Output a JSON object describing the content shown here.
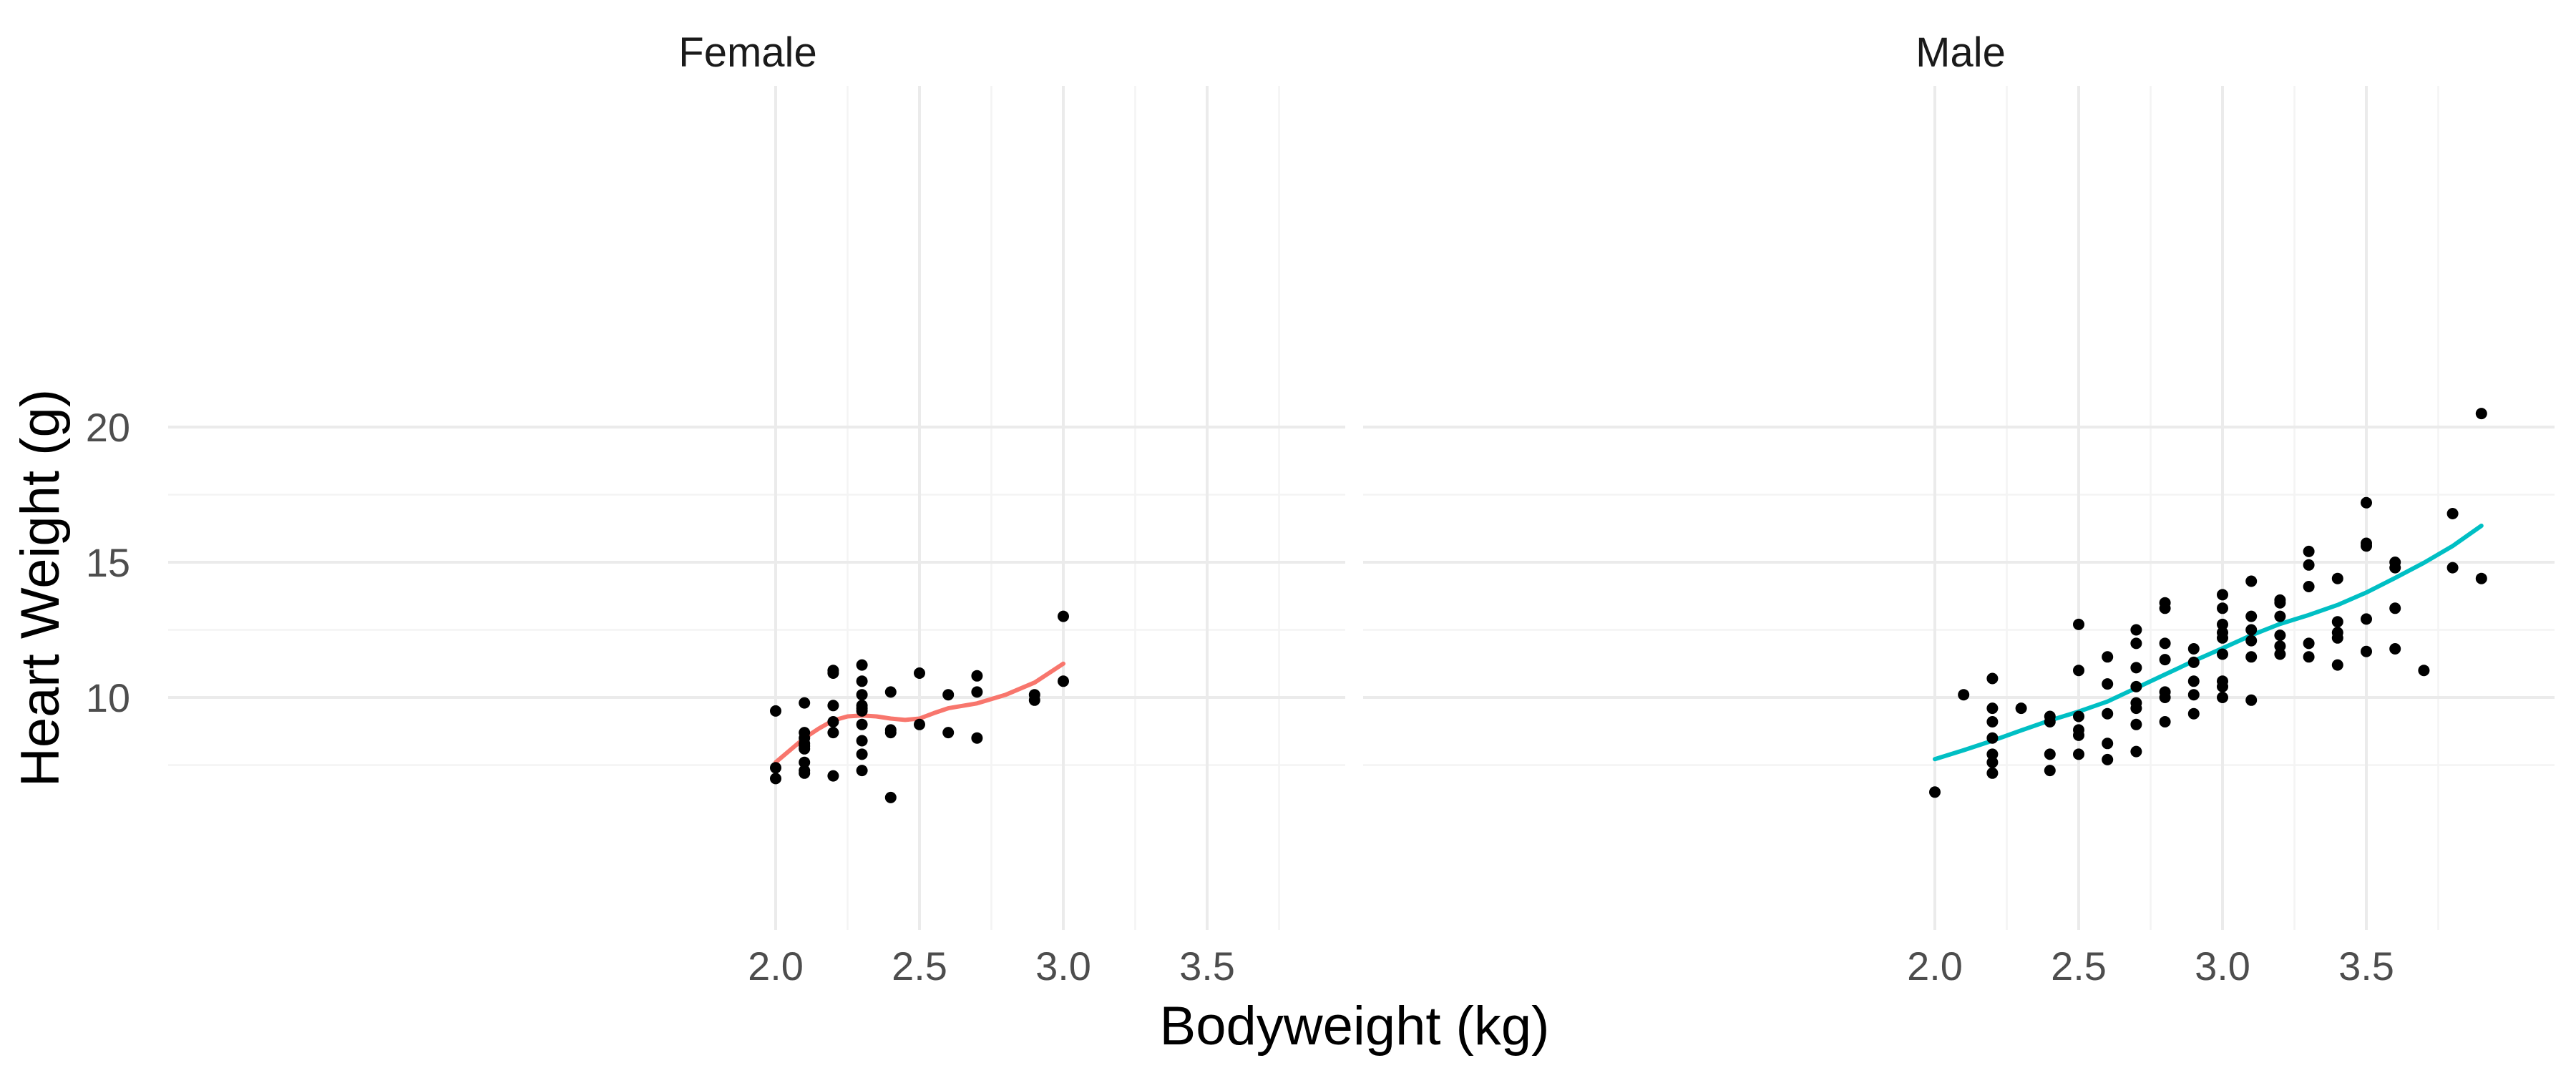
{
  "chart_data": {
    "type": "scatter",
    "xlabel": "Bodyweight (kg)",
    "ylabel": "Heart Weight (g)",
    "xlim": [
      1.9,
      3.95
    ],
    "ylim": [
      6.0,
      21.0
    ],
    "x_ticks": [
      "2.0",
      "2.5",
      "3.0",
      "3.5"
    ],
    "y_ticks": [
      "10",
      "15",
      "20"
    ],
    "grid": true,
    "legend": "none",
    "panels": [
      {
        "label": "Female",
        "line_color": "#F8766D",
        "points": [
          [
            2.0,
            7.0
          ],
          [
            2.0,
            7.4
          ],
          [
            2.0,
            9.5
          ],
          [
            2.1,
            7.2
          ],
          [
            2.1,
            7.3
          ],
          [
            2.1,
            7.6
          ],
          [
            2.1,
            8.1
          ],
          [
            2.1,
            8.2
          ],
          [
            2.1,
            8.3
          ],
          [
            2.1,
            8.5
          ],
          [
            2.1,
            8.7
          ],
          [
            2.1,
            9.8
          ],
          [
            2.2,
            7.1
          ],
          [
            2.2,
            8.7
          ],
          [
            2.2,
            9.1
          ],
          [
            2.2,
            9.7
          ],
          [
            2.2,
            10.9
          ],
          [
            2.2,
            11.0
          ],
          [
            2.3,
            7.3
          ],
          [
            2.3,
            7.9
          ],
          [
            2.3,
            8.4
          ],
          [
            2.3,
            9.0
          ],
          [
            2.3,
            9.5
          ],
          [
            2.3,
            9.6
          ],
          [
            2.3,
            9.7
          ],
          [
            2.3,
            10.1
          ],
          [
            2.3,
            10.6
          ],
          [
            2.3,
            11.2
          ],
          [
            2.4,
            6.3
          ],
          [
            2.4,
            8.7
          ],
          [
            2.4,
            8.8
          ],
          [
            2.4,
            10.2
          ],
          [
            2.5,
            9.0
          ],
          [
            2.5,
            10.9
          ],
          [
            2.6,
            8.7
          ],
          [
            2.6,
            10.1
          ],
          [
            2.7,
            8.5
          ],
          [
            2.7,
            10.2
          ],
          [
            2.7,
            10.8
          ],
          [
            2.9,
            9.9
          ],
          [
            2.9,
            10.1
          ],
          [
            3.0,
            10.6
          ],
          [
            3.0,
            13.0
          ]
        ],
        "smooth": [
          [
            2.0,
            7.6
          ],
          [
            2.05,
            8.05
          ],
          [
            2.1,
            8.5
          ],
          [
            2.15,
            8.85
          ],
          [
            2.2,
            9.15
          ],
          [
            2.25,
            9.3
          ],
          [
            2.3,
            9.33
          ],
          [
            2.35,
            9.3
          ],
          [
            2.4,
            9.22
          ],
          [
            2.45,
            9.17
          ],
          [
            2.5,
            9.22
          ],
          [
            2.55,
            9.42
          ],
          [
            2.6,
            9.6
          ],
          [
            2.7,
            9.78
          ],
          [
            2.8,
            10.1
          ],
          [
            2.9,
            10.55
          ],
          [
            3.0,
            11.25
          ]
        ]
      },
      {
        "label": "Male",
        "line_color": "#00BFC4",
        "points": [
          [
            2.0,
            6.5
          ],
          [
            2.1,
            10.1
          ],
          [
            2.2,
            7.2
          ],
          [
            2.2,
            7.6
          ],
          [
            2.2,
            7.9
          ],
          [
            2.2,
            8.5
          ],
          [
            2.2,
            9.1
          ],
          [
            2.2,
            9.6
          ],
          [
            2.2,
            10.7
          ],
          [
            2.3,
            9.6
          ],
          [
            2.4,
            7.3
          ],
          [
            2.4,
            7.9
          ],
          [
            2.4,
            9.1
          ],
          [
            2.4,
            9.3
          ],
          [
            2.5,
            7.9
          ],
          [
            2.5,
            8.6
          ],
          [
            2.5,
            8.8
          ],
          [
            2.5,
            9.3
          ],
          [
            2.5,
            11.0
          ],
          [
            2.5,
            12.7
          ],
          [
            2.6,
            7.7
          ],
          [
            2.6,
            8.3
          ],
          [
            2.6,
            9.4
          ],
          [
            2.6,
            10.5
          ],
          [
            2.6,
            11.5
          ],
          [
            2.7,
            8.0
          ],
          [
            2.7,
            9.0
          ],
          [
            2.7,
            9.6
          ],
          [
            2.7,
            9.8
          ],
          [
            2.7,
            10.4
          ],
          [
            2.7,
            11.1
          ],
          [
            2.7,
            12.0
          ],
          [
            2.7,
            12.5
          ],
          [
            2.8,
            9.1
          ],
          [
            2.8,
            10.0
          ],
          [
            2.8,
            10.2
          ],
          [
            2.8,
            11.4
          ],
          [
            2.8,
            12.0
          ],
          [
            2.8,
            13.3
          ],
          [
            2.8,
            13.5
          ],
          [
            2.9,
            9.4
          ],
          [
            2.9,
            10.1
          ],
          [
            2.9,
            10.6
          ],
          [
            2.9,
            11.3
          ],
          [
            2.9,
            11.8
          ],
          [
            3.0,
            10.0
          ],
          [
            3.0,
            10.4
          ],
          [
            3.0,
            10.6
          ],
          [
            3.0,
            11.6
          ],
          [
            3.0,
            12.2
          ],
          [
            3.0,
            12.4
          ],
          [
            3.0,
            12.7
          ],
          [
            3.0,
            13.3
          ],
          [
            3.0,
            13.8
          ],
          [
            3.1,
            9.9
          ],
          [
            3.1,
            11.5
          ],
          [
            3.1,
            12.1
          ],
          [
            3.1,
            12.5
          ],
          [
            3.1,
            13.0
          ],
          [
            3.1,
            14.3
          ],
          [
            3.2,
            11.6
          ],
          [
            3.2,
            11.9
          ],
          [
            3.2,
            12.3
          ],
          [
            3.2,
            13.0
          ],
          [
            3.2,
            13.5
          ],
          [
            3.2,
            13.6
          ],
          [
            3.3,
            11.5
          ],
          [
            3.3,
            12.0
          ],
          [
            3.3,
            14.1
          ],
          [
            3.3,
            14.9
          ],
          [
            3.3,
            15.4
          ],
          [
            3.4,
            11.2
          ],
          [
            3.4,
            12.2
          ],
          [
            3.4,
            12.4
          ],
          [
            3.4,
            12.8
          ],
          [
            3.4,
            14.4
          ],
          [
            3.5,
            11.7
          ],
          [
            3.5,
            12.9
          ],
          [
            3.5,
            15.6
          ],
          [
            3.5,
            15.7
          ],
          [
            3.5,
            17.2
          ],
          [
            3.6,
            11.8
          ],
          [
            3.6,
            13.3
          ],
          [
            3.6,
            14.8
          ],
          [
            3.6,
            15.0
          ],
          [
            3.7,
            11.0
          ],
          [
            3.8,
            14.8
          ],
          [
            3.8,
            16.8
          ],
          [
            3.9,
            14.4
          ],
          [
            3.9,
            20.5
          ]
        ],
        "smooth": [
          [
            2.0,
            7.72
          ],
          [
            2.1,
            8.05
          ],
          [
            2.2,
            8.4
          ],
          [
            2.3,
            8.78
          ],
          [
            2.4,
            9.15
          ],
          [
            2.5,
            9.48
          ],
          [
            2.6,
            9.85
          ],
          [
            2.7,
            10.35
          ],
          [
            2.8,
            10.85
          ],
          [
            2.9,
            11.35
          ],
          [
            3.0,
            11.82
          ],
          [
            3.1,
            12.3
          ],
          [
            3.2,
            12.72
          ],
          [
            3.3,
            13.05
          ],
          [
            3.4,
            13.42
          ],
          [
            3.5,
            13.88
          ],
          [
            3.6,
            14.42
          ],
          [
            3.7,
            14.98
          ],
          [
            3.8,
            15.6
          ],
          [
            3.9,
            16.35
          ]
        ]
      }
    ]
  }
}
